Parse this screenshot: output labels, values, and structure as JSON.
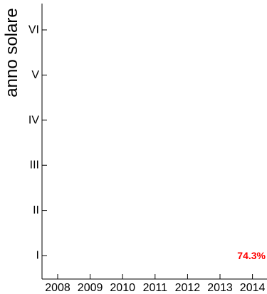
{
  "chart_data": {
    "type": "bar",
    "ylabel": "anno solare",
    "xlabel": "",
    "title": "",
    "x_ticks": [
      "2008",
      "2009",
      "2010",
      "2011",
      "2012",
      "2013",
      "2014"
    ],
    "y_ticks": [
      "I",
      "II",
      "III",
      "IV",
      "V",
      "VI"
    ],
    "annotations": [
      {
        "text": "74.3%",
        "x": "2014",
        "y": "I",
        "color": "#ff0000"
      }
    ],
    "grid": false,
    "frame_color": "#000000"
  }
}
